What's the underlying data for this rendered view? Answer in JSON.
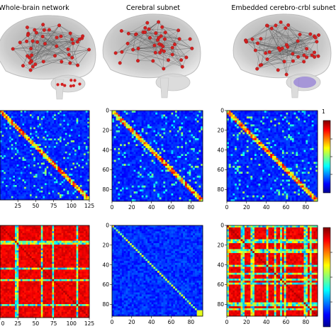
{
  "panel_titles": [
    "Whole-brain network",
    "Cerebral subnet",
    "Embedded cerebro-crbl subnet"
  ],
  "colorbar_top_label": "1",
  "chart_data": [
    {
      "type": "heatmap",
      "title": "",
      "xticks": [
        "25",
        "50",
        "75",
        "100",
        "125"
      ],
      "yticks": [],
      "colormap": "jet",
      "grid": false
    },
    {
      "type": "heatmap",
      "title": "",
      "xticks": [
        "0",
        "20",
        "40",
        "60",
        "80"
      ],
      "yticks": [
        "0",
        "20",
        "40",
        "60",
        "80"
      ],
      "colormap": "jet",
      "grid": false
    },
    {
      "type": "heatmap",
      "title": "",
      "xticks": [
        "0",
        "20",
        "40",
        "60",
        "80"
      ],
      "yticks": [
        "0",
        "20",
        "40",
        "60",
        "80"
      ],
      "colormap": "jet",
      "grid": false
    },
    {
      "type": "heatmap",
      "title": "",
      "xticks": [
        "0",
        "25",
        "50",
        "75",
        "100",
        "125"
      ],
      "yticks": [],
      "colormap": "jet",
      "grid": false
    },
    {
      "type": "heatmap",
      "title": "",
      "xticks": [
        "0",
        "20",
        "40",
        "60",
        "80"
      ],
      "yticks": [
        "0",
        "20",
        "40",
        "60",
        "80"
      ],
      "colormap": "jet",
      "grid": false
    },
    {
      "type": "heatmap",
      "title": "",
      "xticks": [
        "0",
        "20",
        "40",
        "60",
        "80"
      ],
      "yticks": [
        "0",
        "20",
        "40",
        "60",
        "80"
      ],
      "colormap": "jet",
      "grid": false
    }
  ],
  "colors": {
    "heatmap_low": "#1430c8",
    "heatmap_high": "#c81414",
    "brain_mesh": "#c8c8c8",
    "node": "#d32020",
    "edge": "#555555",
    "crbl_subnet": "#7a5cd6"
  }
}
